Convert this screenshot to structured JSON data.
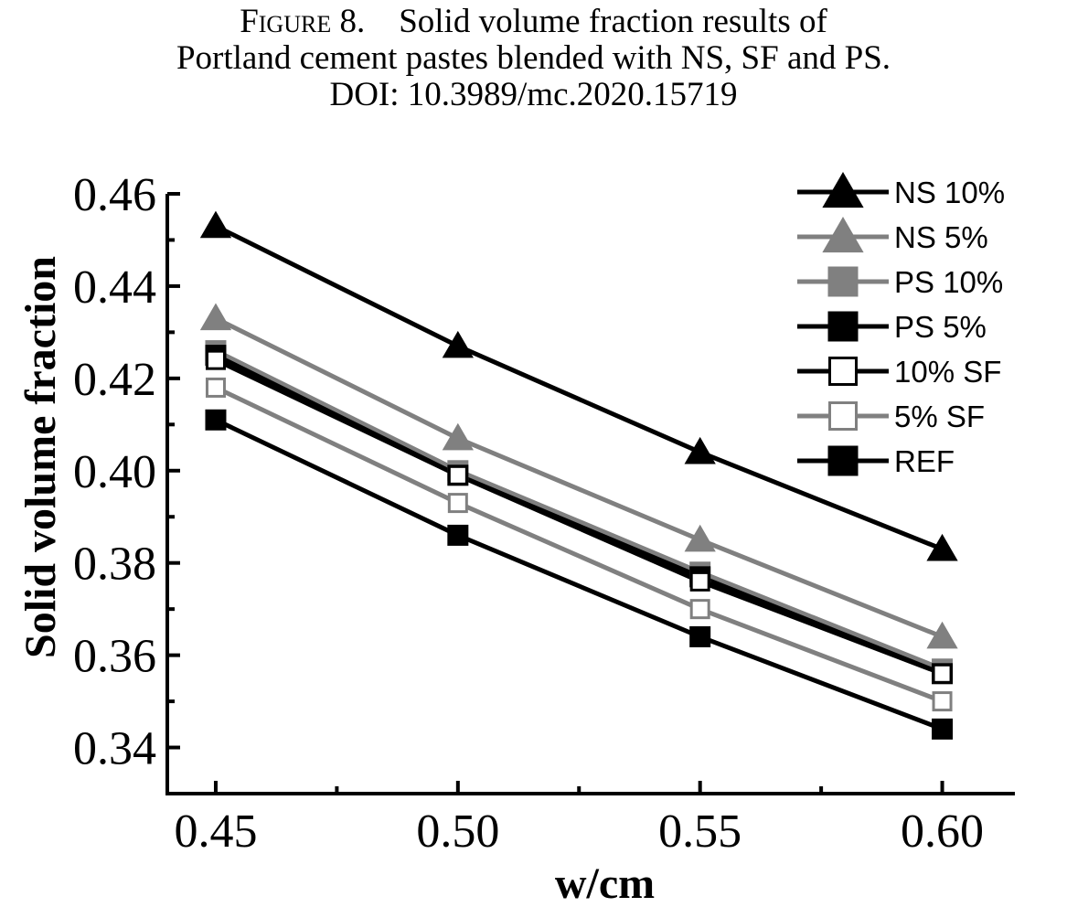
{
  "caption": {
    "figure_label": "Figure 8.",
    "line1_text": "Solid volume fraction results of",
    "line2": "Portland cement pastes blended with NS, SF and PS.",
    "line3": "DOI: 10.3989/mc.2020.15719"
  },
  "chart_data": {
    "type": "line",
    "title": "",
    "xlabel": "w/cm",
    "ylabel": "Solid volume fraction",
    "x": [
      0.45,
      0.5,
      0.55,
      0.6
    ],
    "x_tick_labels": [
      "0.45",
      "0.50",
      "0.55",
      "0.60"
    ],
    "y_tick_labels": [
      "0.34",
      "0.36",
      "0.38",
      "0.40",
      "0.42",
      "0.44",
      "0.46"
    ],
    "xlim": [
      0.44,
      0.615
    ],
    "ylim": [
      0.33,
      0.46
    ],
    "grid": false,
    "legend_position": "top-right",
    "series": [
      {
        "name": "NS 10%",
        "color": "#000000",
        "marker": "triangle",
        "fill": "filled",
        "values": [
          0.453,
          0.427,
          0.404,
          0.383
        ]
      },
      {
        "name": "NS 5%",
        "color": "#808080",
        "marker": "triangle",
        "fill": "filled",
        "values": [
          0.433,
          0.407,
          0.385,
          0.364
        ]
      },
      {
        "name": "PS 10%",
        "color": "#808080",
        "marker": "square",
        "fill": "filled",
        "values": [
          0.426,
          0.4,
          0.378,
          0.357
        ]
      },
      {
        "name": "PS 5%",
        "color": "#000000",
        "marker": "square",
        "fill": "filled",
        "values": [
          0.425,
          0.399,
          0.377,
          0.356
        ]
      },
      {
        "name": "10% SF",
        "color": "#000000",
        "marker": "square",
        "fill": "open",
        "values": [
          0.424,
          0.399,
          0.376,
          0.356
        ]
      },
      {
        "name": "5% SF",
        "color": "#808080",
        "marker": "square",
        "fill": "open",
        "values": [
          0.418,
          0.393,
          0.37,
          0.35
        ]
      },
      {
        "name": "REF",
        "color": "#000000",
        "marker": "square",
        "fill": "filled",
        "values": [
          0.411,
          0.386,
          0.364,
          0.344
        ]
      }
    ]
  }
}
